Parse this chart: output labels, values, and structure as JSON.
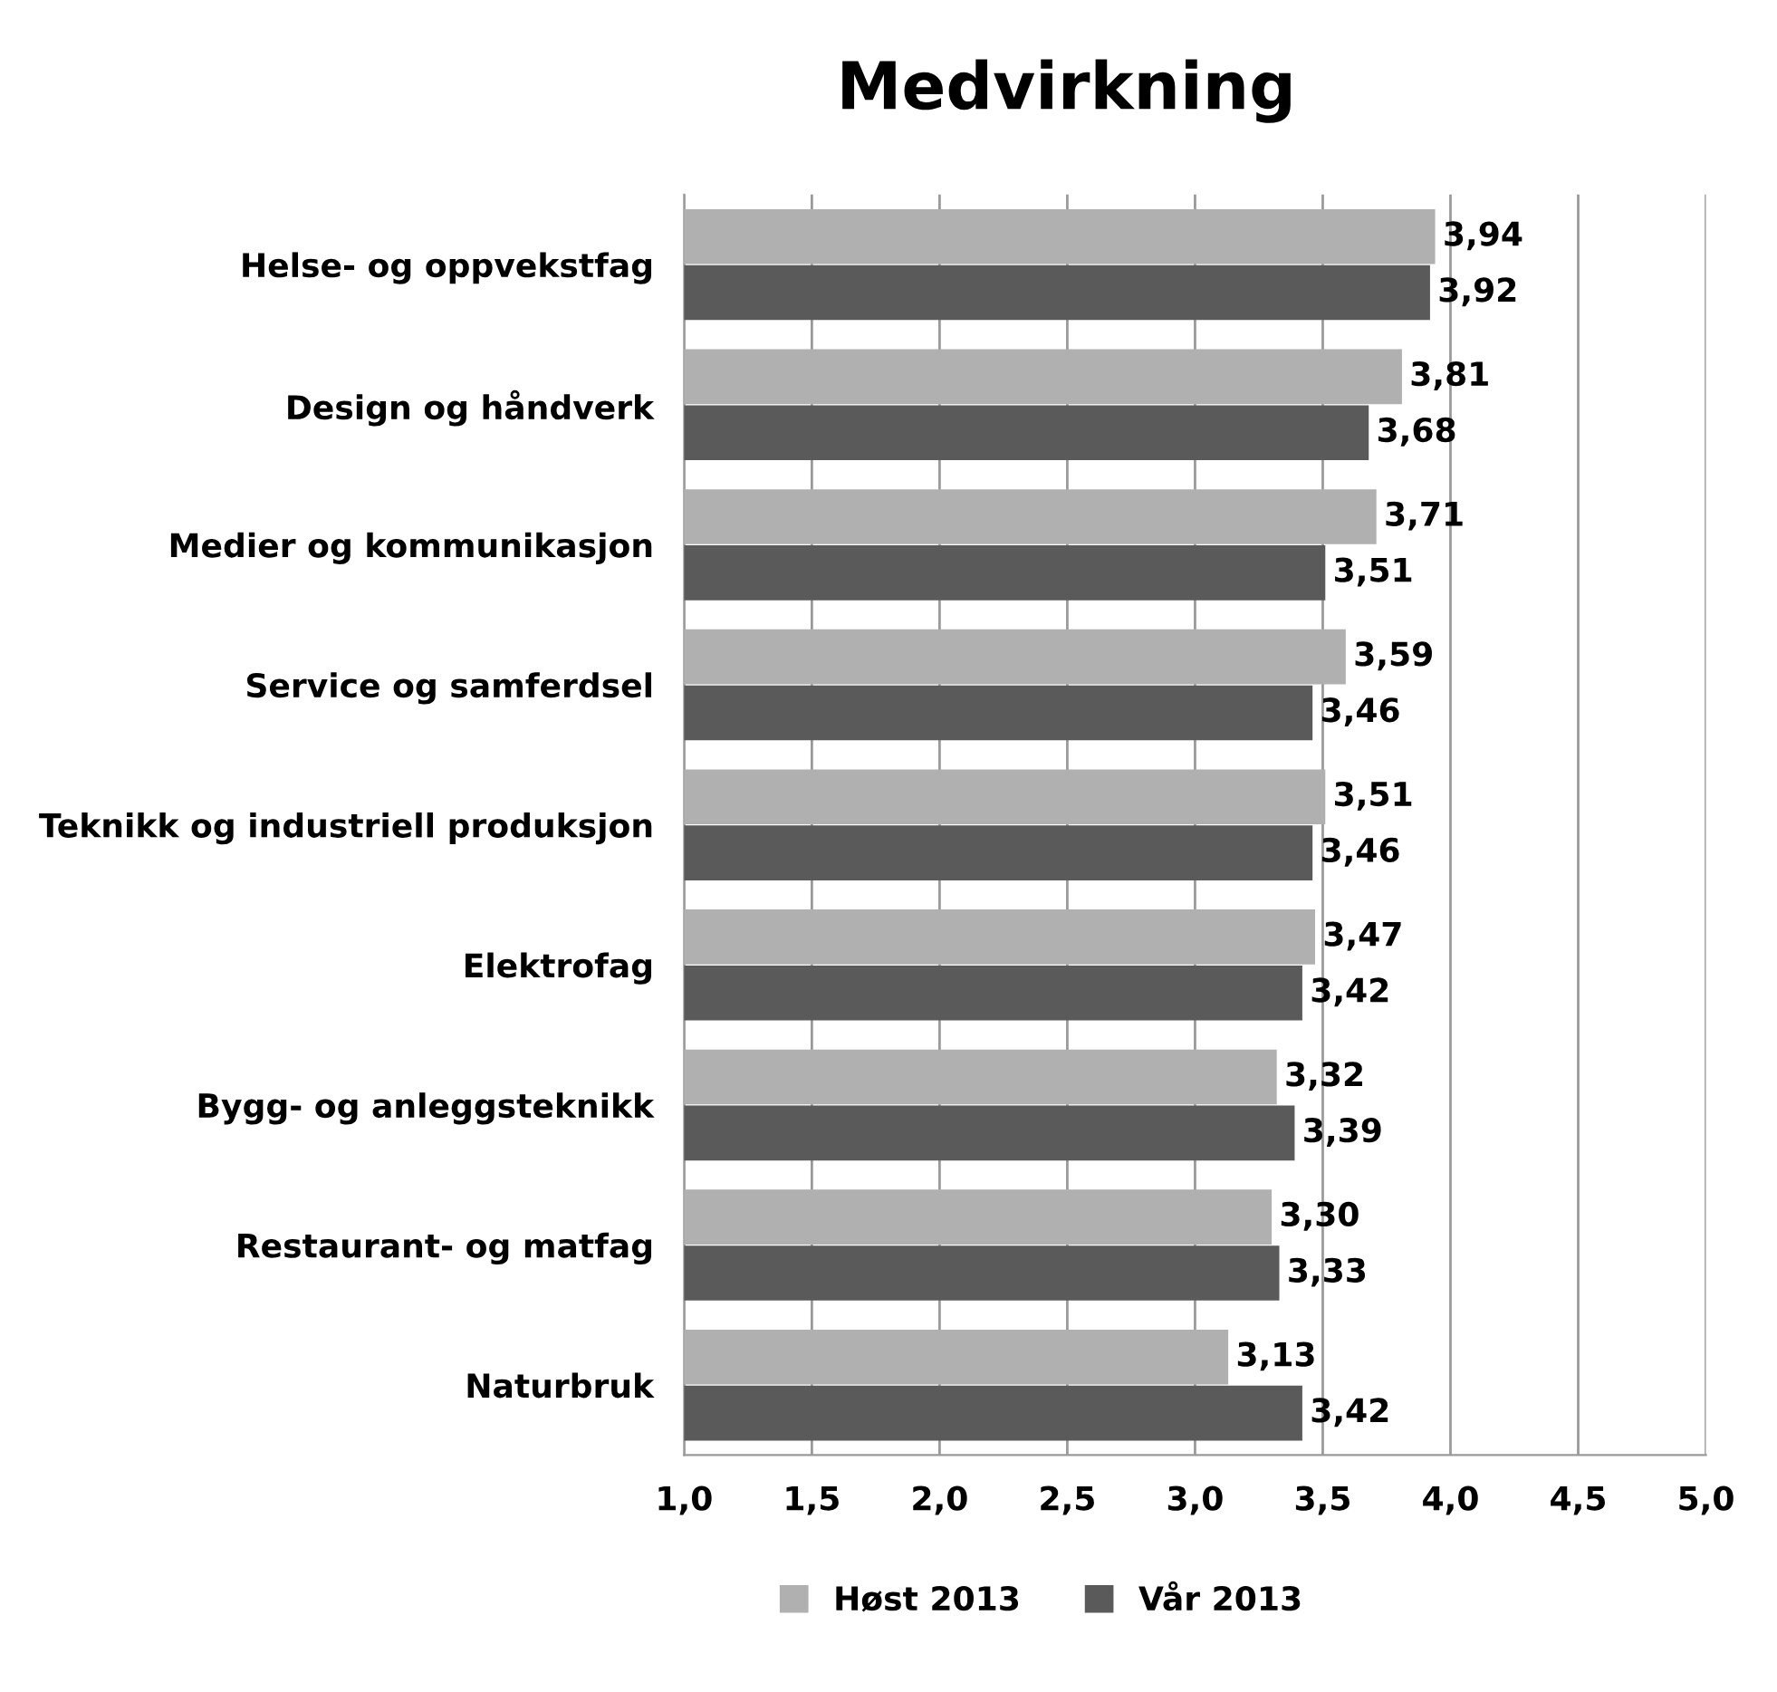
{
  "chart_data": {
    "type": "bar",
    "orientation": "horizontal",
    "title": "Medvirkning",
    "categories": [
      "Helse- og oppvekstfag",
      "Design og håndverk",
      "Medier og kommunikasjon",
      "Service og samferdsel",
      "Teknikk og industriell produksjon",
      "Elektrofag",
      "Bygg- og anleggsteknikk",
      "Restaurant- og matfag",
      "Naturbruk"
    ],
    "series": [
      {
        "name": "Høst 2013",
        "color": "#b0b0b0",
        "values": [
          3.94,
          3.81,
          3.71,
          3.59,
          3.51,
          3.47,
          3.32,
          3.3,
          3.13
        ],
        "value_labels": [
          "3,94",
          "3,81",
          "3,71",
          "3,59",
          "3,51",
          "3,47",
          "3,32",
          "3,30",
          "3,13"
        ]
      },
      {
        "name": "Vår 2013",
        "color": "#5a5a5a",
        "values": [
          3.92,
          3.68,
          3.51,
          3.46,
          3.46,
          3.42,
          3.39,
          3.33,
          3.42
        ],
        "value_labels": [
          "3,92",
          "3,68",
          "3,51",
          "3,46",
          "3,46",
          "3,42",
          "3,39",
          "3,33",
          "3,42"
        ]
      }
    ],
    "xlim": [
      1.0,
      5.0
    ],
    "xticks": [
      {
        "value": 1.0,
        "label": "1,0"
      },
      {
        "value": 1.5,
        "label": "1,5"
      },
      {
        "value": 2.0,
        "label": "2,0"
      },
      {
        "value": 2.5,
        "label": "2,5"
      },
      {
        "value": 3.0,
        "label": "3,0"
      },
      {
        "value": 3.5,
        "label": "3,5"
      },
      {
        "value": 4.0,
        "label": "4,0"
      },
      {
        "value": 4.5,
        "label": "4,5"
      },
      {
        "value": 5.0,
        "label": "5,0"
      }
    ],
    "grid": "x",
    "legend": "bottom"
  }
}
